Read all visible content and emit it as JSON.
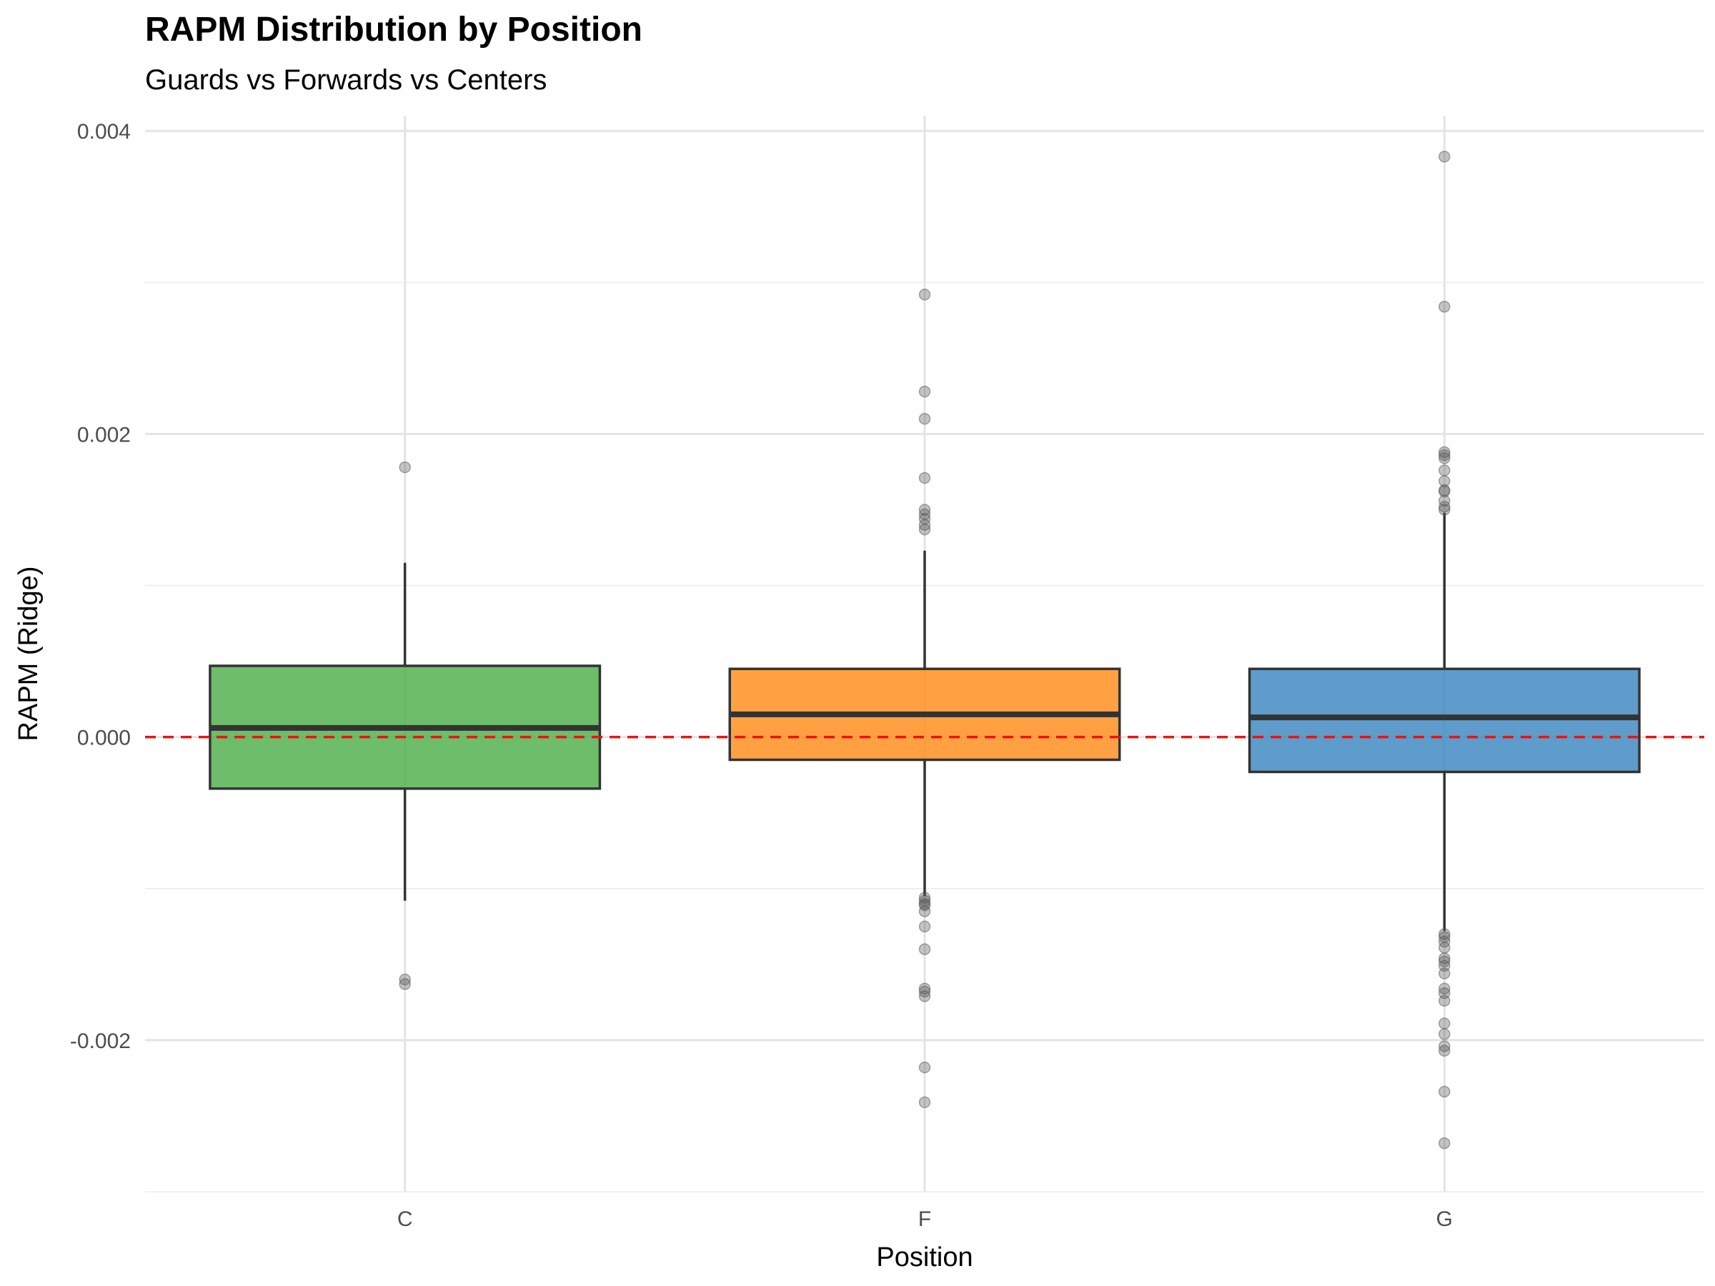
{
  "title": "RAPM Distribution by Position",
  "subtitle": "Guards vs Forwards vs Centers",
  "chart_data": {
    "type": "box",
    "xlabel": "Position",
    "ylabel": "RAPM (Ridge)",
    "categories": [
      "C",
      "F",
      "G"
    ],
    "ylim": [
      -0.003,
      0.0041
    ],
    "yticks": [
      -0.002,
      0.0,
      0.002,
      0.004
    ],
    "ytick_labels": [
      "-0.002",
      "0.000",
      "0.002",
      "0.004"
    ],
    "reference_line": {
      "y": 0.0,
      "style": "dashed",
      "color": "#ee1111"
    },
    "grid": true,
    "legend": "none",
    "boxes": [
      {
        "category": "C",
        "color": "#4daf4a",
        "q1": -0.00034,
        "median": 6e-05,
        "q3": 0.00047,
        "whisker_low": -0.00108,
        "whisker_high": 0.00115,
        "outliers": [
          0.00178,
          -0.0016,
          -0.00163
        ]
      },
      {
        "category": "F",
        "color": "#ff8c1a",
        "q1": -0.00015,
        "median": 0.00015,
        "q3": 0.00045,
        "whisker_low": -0.00105,
        "whisker_high": 0.00123,
        "outliers": [
          0.00292,
          0.00228,
          0.0021,
          0.00171,
          0.0015,
          0.00147,
          0.00144,
          0.0014,
          0.00137,
          -0.00106,
          -0.00108,
          -0.0011,
          -0.00111,
          -0.00115,
          -0.00125,
          -0.0014,
          -0.00166,
          -0.00168,
          -0.00171,
          -0.00218,
          -0.00241
        ]
      },
      {
        "category": "G",
        "color": "#3a86c0",
        "q1": -0.00023,
        "median": 0.00013,
        "q3": 0.00045,
        "whisker_low": -0.00128,
        "whisker_high": 0.00148,
        "outliers": [
          0.00383,
          0.00284,
          0.00188,
          0.00186,
          0.00184,
          0.00176,
          0.00169,
          0.00163,
          0.00162,
          0.00156,
          0.00152,
          0.0015,
          -0.0013,
          -0.00132,
          -0.00135,
          -0.00139,
          -0.00146,
          -0.00148,
          -0.00151,
          -0.00156,
          -0.00166,
          -0.00169,
          -0.00174,
          -0.00189,
          -0.00196,
          -0.00204,
          -0.00207,
          -0.00234,
          -0.00268
        ]
      }
    ]
  }
}
